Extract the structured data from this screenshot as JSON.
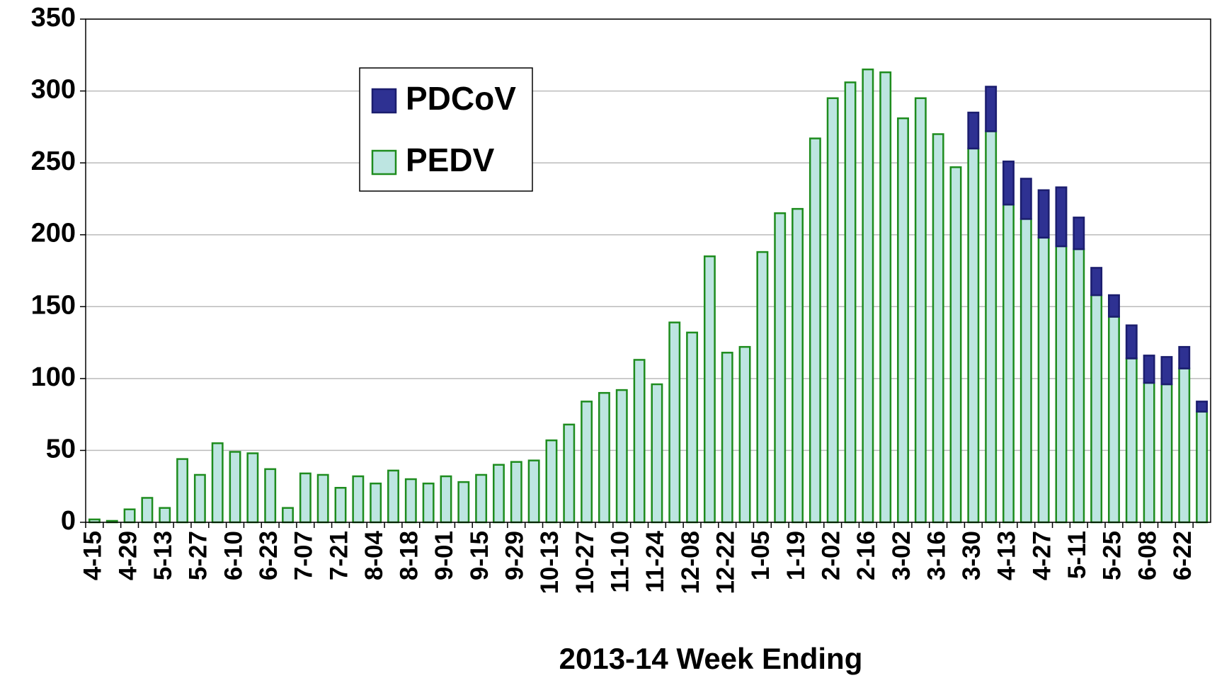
{
  "chart_data": {
    "type": "bar",
    "stacked": true,
    "x_label": "2013-14 Week Ending",
    "categories": [
      "4-15",
      null,
      "4-29",
      null,
      "5-13",
      null,
      "5-27",
      null,
      "6-10",
      null,
      "6-23",
      null,
      "7-07",
      null,
      "7-21",
      null,
      "8-04",
      null,
      "8-18",
      null,
      "9-01",
      null,
      "9-15",
      null,
      "9-29",
      null,
      "10-13",
      null,
      "10-27",
      null,
      "11-10",
      null,
      "11-24",
      null,
      "12-08",
      null,
      "12-22",
      null,
      "1-05",
      null,
      "1-19",
      null,
      "2-02",
      null,
      "2-16",
      null,
      "3-02",
      null,
      "3-16",
      null,
      "3-30",
      null,
      "4-13",
      null,
      "4-27",
      null,
      "5-11",
      null,
      "5-25",
      null,
      "6-08",
      null,
      "6-22",
      null
    ],
    "series": [
      {
        "name": "PEDV",
        "color": "#bde5e1",
        "edge": "#1e8c1e",
        "values": [
          2,
          1,
          9,
          17,
          10,
          44,
          33,
          55,
          49,
          48,
          37,
          10,
          34,
          33,
          24,
          32,
          27,
          36,
          30,
          27,
          32,
          28,
          33,
          40,
          42,
          43,
          57,
          68,
          84,
          90,
          92,
          113,
          96,
          139,
          132,
          185,
          118,
          122,
          188,
          215,
          218,
          267,
          295,
          306,
          315,
          313,
          281,
          295,
          270,
          247,
          260,
          272,
          221,
          211,
          198,
          192,
          190,
          158,
          143,
          114,
          97,
          96,
          107,
          77
        ]
      },
      {
        "name": "PDCoV",
        "color": "#2e3192",
        "edge": "#1b1d6e",
        "values": [
          0,
          0,
          0,
          0,
          0,
          0,
          0,
          0,
          0,
          0,
          0,
          0,
          0,
          0,
          0,
          0,
          0,
          0,
          0,
          0,
          0,
          0,
          0,
          0,
          0,
          0,
          0,
          0,
          0,
          0,
          0,
          0,
          0,
          0,
          0,
          0,
          0,
          0,
          0,
          0,
          0,
          0,
          0,
          0,
          0,
          0,
          0,
          0,
          0,
          0,
          25,
          31,
          30,
          28,
          33,
          41,
          22,
          19,
          15,
          23,
          19,
          19,
          15,
          7
        ]
      }
    ],
    "ylim": [
      0,
      350
    ],
    "yticks": [
      0,
      50,
      100,
      150,
      200,
      250,
      300,
      350
    ],
    "grid": true,
    "legend": "upper left"
  }
}
